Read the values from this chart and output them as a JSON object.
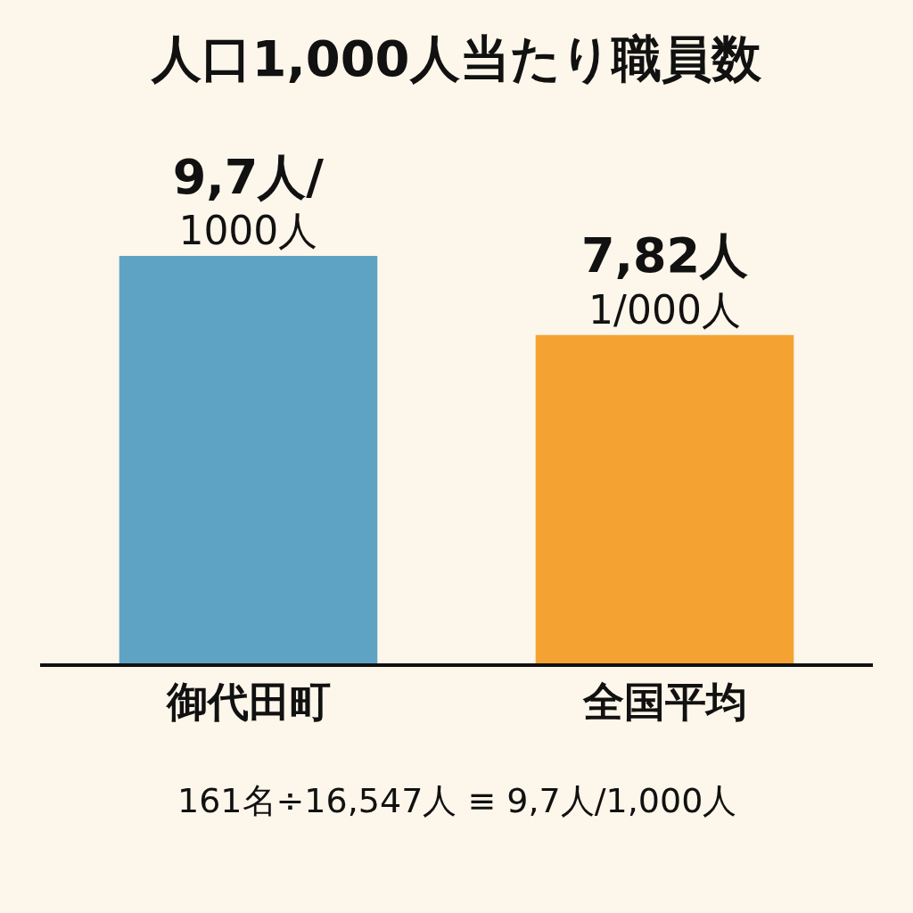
{
  "chart_data": {
    "type": "bar",
    "title": "人口1,000人当たり職員数",
    "categories": [
      "御代田町",
      "全国平均"
    ],
    "values": [
      9.7,
      7.82
    ],
    "colors": [
      "#5fa3c4",
      "#f4a332"
    ],
    "value_labels": [
      "9,7人/\n1000人",
      "7,82人\n1/000人"
    ],
    "annotations": [
      "161名÷16,547人 ≡ 9,7人/1,000人"
    ]
  }
}
